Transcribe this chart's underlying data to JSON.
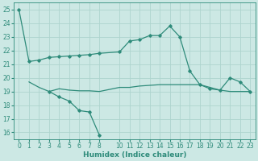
{
  "line1_x": [
    0,
    1,
    2,
    3,
    4,
    5,
    6,
    7,
    8,
    10,
    11,
    12,
    13,
    14,
    15,
    16,
    17,
    18,
    19,
    20,
    21,
    22,
    23
  ],
  "line1_y": [
    25.0,
    21.2,
    21.3,
    21.5,
    21.55,
    21.6,
    21.65,
    21.7,
    21.8,
    21.9,
    22.7,
    22.8,
    23.1,
    23.1,
    23.8,
    23.0,
    20.5,
    19.5,
    19.2,
    19.1,
    20.0,
    19.7,
    19.0
  ],
  "line2_x": [
    1,
    2,
    3,
    4,
    5,
    6,
    7,
    8,
    10,
    11,
    12,
    13,
    14,
    15,
    16,
    17,
    18,
    19,
    20,
    21,
    22,
    23
  ],
  "line2_y": [
    19.7,
    19.3,
    19.0,
    19.2,
    19.1,
    19.05,
    19.05,
    19.0,
    19.3,
    19.3,
    19.4,
    19.45,
    19.5,
    19.5,
    19.5,
    19.5,
    19.5,
    19.3,
    19.1,
    19.0,
    19.0,
    19.0
  ],
  "line3_x": [
    3,
    4,
    5,
    6,
    7,
    8
  ],
  "line3_y": [
    19.0,
    18.6,
    18.3,
    17.6,
    17.5,
    15.8
  ],
  "color": "#2e8b7a",
  "bg_color": "#cce8e4",
  "grid_color": "#aed4ce",
  "xlabel": "Humidex (Indice chaleur)",
  "xlim": [
    -0.5,
    23.5
  ],
  "ylim": [
    15.5,
    25.5
  ],
  "yticks": [
    16,
    17,
    18,
    19,
    20,
    21,
    22,
    23,
    24,
    25
  ],
  "xticks": [
    0,
    1,
    2,
    3,
    4,
    5,
    6,
    7,
    8,
    10,
    11,
    12,
    13,
    14,
    15,
    16,
    17,
    18,
    19,
    20,
    21,
    22,
    23
  ],
  "xticklabels": [
    "0",
    "1",
    "2",
    "3",
    "4",
    "5",
    "6",
    "7",
    "8",
    "10",
    "11",
    "12",
    "13",
    "14",
    "15",
    "16",
    "17",
    "18",
    "19",
    "20",
    "21",
    "22",
    "23"
  ]
}
